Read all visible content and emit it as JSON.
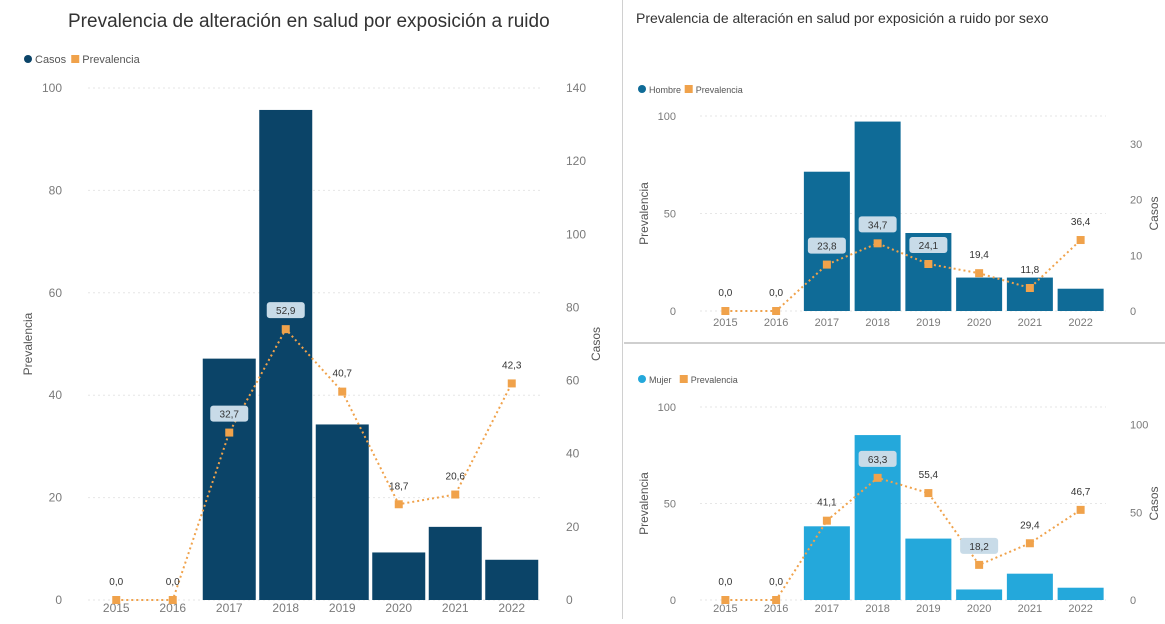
{
  "colors": {
    "casos": "#0b4468",
    "hombre": "#0f6b97",
    "mujer": "#24a8db",
    "prevalencia": "#f0a24b",
    "grid": "#e6e6e6",
    "axis_text": "#7a7a7a",
    "label_box": "#c8dbe8"
  },
  "chart_data": [
    {
      "type": "bar",
      "title": "Prevalencia de alteración en salud por exposición a ruido",
      "legend": {
        "placement": "top-left",
        "entries": [
          "Casos",
          "Prevalencia"
        ]
      },
      "categories": [
        "2015",
        "2016",
        "2017",
        "2018",
        "2019",
        "2020",
        "2021",
        "2022"
      ],
      "ylabel": "Prevalencia",
      "ylabel_right": "Casos",
      "ylim": [
        0,
        100
      ],
      "ylim_right": [
        0,
        140
      ],
      "y_ticks": [
        "0",
        "20",
        "40",
        "60",
        "80",
        "100"
      ],
      "y_ticks_right": [
        "0",
        "20",
        "40",
        "60",
        "80",
        "100",
        "120",
        "140"
      ],
      "grid": true,
      "series": [
        {
          "name": "Casos",
          "kind": "bar",
          "axis": "right",
          "values": [
            0,
            0,
            66,
            134,
            48,
            13,
            20,
            11
          ]
        },
        {
          "name": "Prevalencia",
          "kind": "line",
          "axis": "left",
          "values": [
            0.0,
            0.0,
            32.7,
            52.9,
            40.7,
            18.7,
            20.6,
            42.3
          ],
          "labels": [
            "0,0",
            "0,0",
            "32,7",
            "52,9",
            "40,7",
            "18,7",
            "20,6",
            "42,3"
          ]
        }
      ],
      "highlighted_labels": [
        "32,7",
        "52,9"
      ]
    },
    {
      "type": "bar",
      "title": "Prevalencia de alteración en salud por exposición a ruido por sexo",
      "legend": {
        "placement": "top-left",
        "entries": [
          "Hombre",
          "Prevalencia"
        ]
      },
      "categories": [
        "2015",
        "2016",
        "2017",
        "2018",
        "2019",
        "2020",
        "2021",
        "2022"
      ],
      "ylabel": "Prevalencia",
      "ylabel_right": "Casos",
      "ylim": [
        0,
        100
      ],
      "ylim_right": [
        0,
        35
      ],
      "y_ticks": [
        "0",
        "50",
        "100"
      ],
      "y_ticks_right": [
        "0",
        "10",
        "20",
        "30"
      ],
      "grid": true,
      "series": [
        {
          "name": "Hombre",
          "kind": "bar",
          "axis": "right",
          "values": [
            0,
            0,
            25,
            34,
            14,
            6,
            6,
            4
          ]
        },
        {
          "name": "Prevalencia",
          "kind": "line",
          "axis": "left",
          "values": [
            0.0,
            0.0,
            23.8,
            34.7,
            24.1,
            19.4,
            11.8,
            36.4
          ],
          "labels": [
            "0,0",
            "0,0",
            "23,8",
            "34,7",
            "24,1",
            "19,4",
            "11,8",
            "36,4"
          ]
        }
      ],
      "highlighted_labels": [
        "23,8",
        "34,7",
        "24,1"
      ]
    },
    {
      "type": "bar",
      "title": "",
      "legend": {
        "placement": "top-left",
        "entries": [
          "Mujer",
          "Prevalencia"
        ]
      },
      "categories": [
        "2015",
        "2016",
        "2017",
        "2018",
        "2019",
        "2020",
        "2021",
        "2022"
      ],
      "ylabel": "Prevalencia",
      "ylabel_right": "Casos",
      "ylim": [
        0,
        100
      ],
      "ylim_right": [
        0,
        110
      ],
      "y_ticks": [
        "0",
        "50",
        "100"
      ],
      "y_ticks_right": [
        "0",
        "50",
        "100"
      ],
      "grid": true,
      "series": [
        {
          "name": "Mujer",
          "kind": "bar",
          "axis": "right",
          "values": [
            0,
            0,
            42,
            94,
            35,
            6,
            15,
            7
          ]
        },
        {
          "name": "Prevalencia",
          "kind": "line",
          "axis": "left",
          "values": [
            0.0,
            0.0,
            41.1,
            63.3,
            55.4,
            18.2,
            29.4,
            46.7
          ],
          "labels": [
            "0,0",
            "0,0",
            "41,1",
            "63,3",
            "55,4",
            "18,2",
            "29,4",
            "46,7"
          ]
        }
      ],
      "highlighted_labels": [
        "63,3",
        "18,2"
      ]
    }
  ]
}
